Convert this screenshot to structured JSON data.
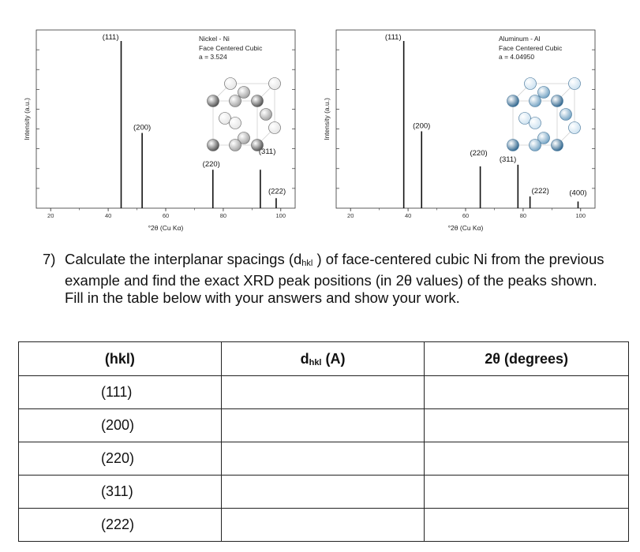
{
  "charts": [
    {
      "id": "ni",
      "chart_data": {
        "type": "bar",
        "title": "Nickel - Ni",
        "subtitle_lines": [
          "Face Centered Cubic",
          "a = 3.524"
        ],
        "ylabel": "Intensity (a.u.)",
        "xlabel": "°2θ (Cu Kα)",
        "xlim": [
          15,
          105
        ],
        "ylim": [
          0,
          100
        ],
        "xticks": [
          20,
          40,
          60,
          80,
          100
        ],
        "peaks": [
          {
            "label": "(111)",
            "x": 44.5,
            "y": 100
          },
          {
            "label": "(200)",
            "x": 51.8,
            "y": 45
          },
          {
            "label": "(220)",
            "x": 76.4,
            "y": 23
          },
          {
            "label": "(311)",
            "x": 92.9,
            "y": 23
          },
          {
            "label": "(222)",
            "x": 98.4,
            "y": 6
          }
        ]
      }
    },
    {
      "id": "al",
      "chart_data": {
        "type": "bar",
        "title": "Aluminum - Al",
        "subtitle_lines": [
          "Face Centered Cubic",
          "a = 4.04950"
        ],
        "ylabel": "Intensity (a.u.)",
        "xlabel": "°2θ (Cu Kα)",
        "xlim": [
          15,
          105
        ],
        "ylim": [
          0,
          100
        ],
        "xticks": [
          20,
          40,
          60,
          80,
          100
        ],
        "peaks": [
          {
            "label": "(111)",
            "x": 38.5,
            "y": 100
          },
          {
            "label": "(200)",
            "x": 44.7,
            "y": 46
          },
          {
            "label": "(220)",
            "x": 65.1,
            "y": 25
          },
          {
            "label": "(311)",
            "x": 78.2,
            "y": 26
          },
          {
            "label": "(222)",
            "x": 82.4,
            "y": 7
          },
          {
            "label": "(400)",
            "x": 99.1,
            "y": 4
          }
        ]
      }
    }
  ],
  "crystal_colors": {
    "ni": {
      "light": "#e6e6e6",
      "mid": "#a6a6a6",
      "dark": "#595959"
    },
    "al": {
      "light": "#cfe3f1",
      "mid": "#7aa7c6",
      "dark": "#3a6d93"
    }
  },
  "question": {
    "number": "7)",
    "part1": "Calculate the interplanar spacings (d",
    "part1_sub": "hkl",
    "part2": " ) of face-centered cubic Ni from the previous example and find the exact XRD peak positions (in 2θ values) of the peaks shown. Fill in the table below with your answers and show your work."
  },
  "table": {
    "header_hkl": "(hkl)",
    "header_d_main": "d",
    "header_d_sub": "hkl",
    "header_d_unit": " (A)",
    "header_2theta": "2θ (degrees)",
    "rows": [
      "(111)",
      "(200)",
      "(220)",
      "(311)",
      "(222)"
    ]
  }
}
